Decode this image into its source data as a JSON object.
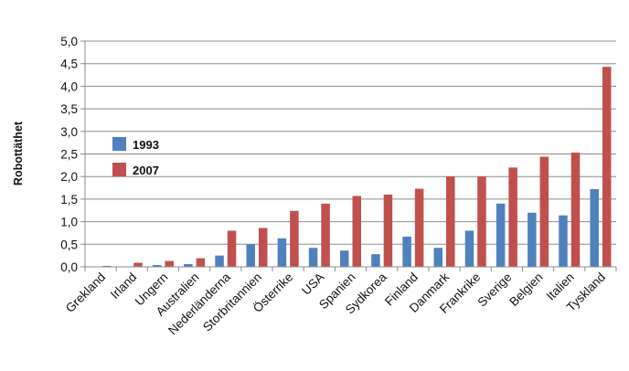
{
  "chart_data": {
    "type": "bar",
    "title": "",
    "xlabel": "",
    "ylabel": "Robottäthet",
    "ylim": [
      0,
      5
    ],
    "yticks": [
      "0,0",
      "0,5",
      "1,0",
      "1,5",
      "2,0",
      "2,5",
      "3,0",
      "3,5",
      "4,0",
      "4,5",
      "5,0"
    ],
    "grid": true,
    "legend_position": "left",
    "categories": [
      "Grekland",
      "Irland",
      "Ungern",
      "Australien",
      "Nederländerna",
      "Storbritannien",
      "Österrike",
      "USA",
      "Spanien",
      "Sydkorea",
      "Finland",
      "Danmark",
      "Frankrike",
      "Sverige",
      "Belgien",
      "Italien",
      "Tyskland"
    ],
    "series": [
      {
        "name": "1993",
        "color": "#4f81bd",
        "values": [
          0.0,
          0.0,
          0.04,
          0.06,
          0.25,
          0.5,
          0.63,
          0.42,
          0.36,
          0.28,
          0.67,
          0.42,
          0.8,
          1.4,
          1.2,
          1.14,
          1.72
        ]
      },
      {
        "name": "2007",
        "color": "#c0504d",
        "values": [
          0.02,
          0.09,
          0.13,
          0.19,
          0.8,
          0.86,
          1.24,
          1.4,
          1.57,
          1.6,
          1.73,
          2.0,
          2.0,
          2.2,
          2.44,
          2.53,
          4.43
        ]
      }
    ]
  }
}
